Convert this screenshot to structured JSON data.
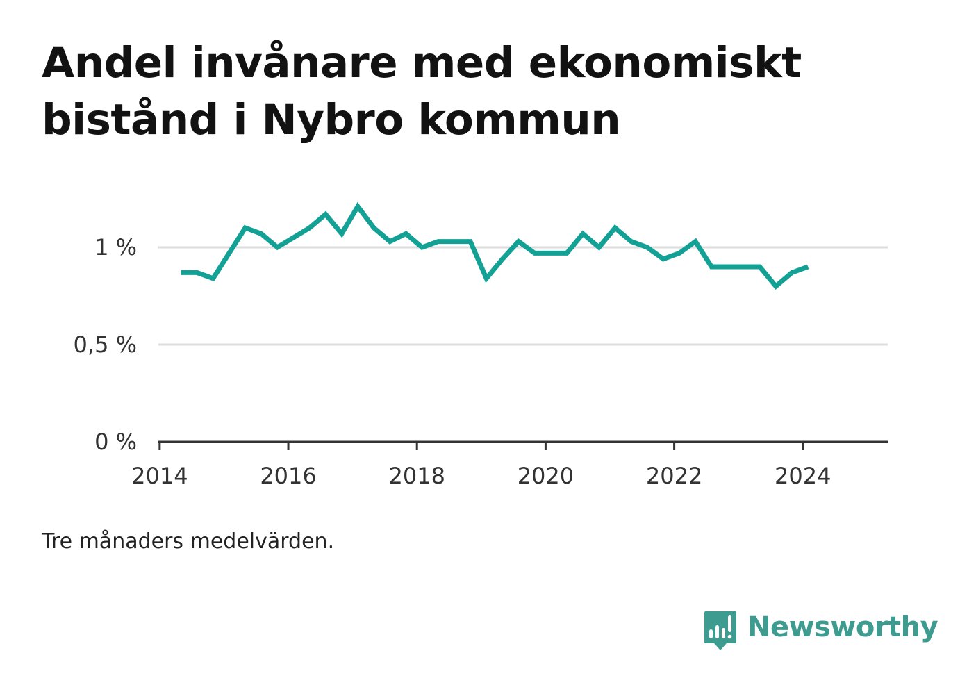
{
  "title": "Andel invånare med ekonomiskt bistånd i Nybro kommun",
  "note": "Tre månaders medelvärden.",
  "brand": {
    "name": "Newsworthy",
    "icon": "newsworthy-logo-icon",
    "color": "#3d9b8f"
  },
  "colors": {
    "line": "#14a195",
    "grid": "#dddddd",
    "axis": "#333333"
  },
  "chart_data": {
    "type": "line",
    "title": "Andel invånare med ekonomiskt bistånd i Nybro kommun",
    "xlabel": "",
    "ylabel": "",
    "grid": true,
    "legend": "none",
    "xlim": [
      2013.98,
      2025.32
    ],
    "ylim": [
      0,
      1.2
    ],
    "x_ticks": [
      2014,
      2016,
      2018,
      2020,
      2022,
      2024
    ],
    "x_tick_labels": [
      "2014",
      "2016",
      "2018",
      "2020",
      "2022",
      "2024"
    ],
    "y_ticks": [
      0,
      0.5,
      1
    ],
    "y_tick_labels": [
      "0 %",
      "0,5 %",
      "1 %"
    ],
    "series": [
      {
        "x": [
          2014.33,
          2014.58,
          2014.83,
          2015.08,
          2015.33,
          2015.58,
          2015.83,
          2016.08,
          2016.33,
          2016.58,
          2016.83,
          2017.08,
          2017.33,
          2017.58,
          2017.83,
          2018.08,
          2018.33,
          2018.58,
          2018.83,
          2019.08,
          2019.33,
          2019.58,
          2019.83,
          2020.08,
          2020.33,
          2020.58,
          2020.83,
          2021.08,
          2021.33,
          2021.58,
          2021.83,
          2022.08,
          2022.33,
          2022.58,
          2022.83,
          2023.08,
          2023.33,
          2023.58,
          2023.83,
          2024.08
        ],
        "values": [
          0.87,
          0.87,
          0.84,
          0.97,
          1.1,
          1.07,
          1.0,
          1.05,
          1.1,
          1.17,
          1.07,
          1.21,
          1.1,
          1.03,
          1.07,
          1.0,
          1.03,
          1.03,
          1.03,
          0.84,
          0.94,
          1.03,
          0.97,
          0.97,
          0.97,
          1.07,
          1.0,
          1.1,
          1.03,
          1.0,
          0.94,
          0.97,
          1.03,
          0.9,
          0.9,
          0.9,
          0.9,
          0.8,
          0.87,
          0.9
        ]
      }
    ]
  }
}
